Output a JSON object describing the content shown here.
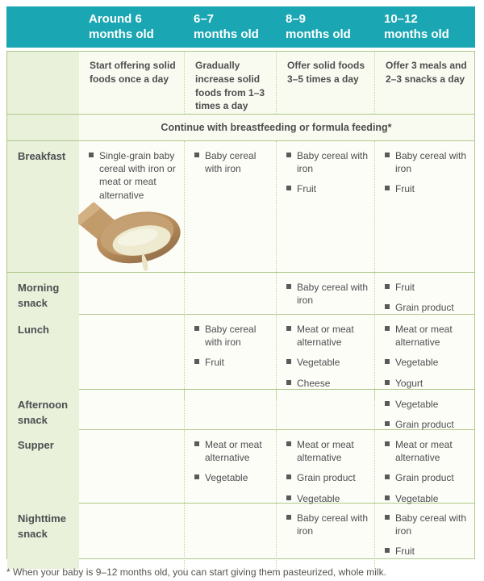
{
  "colors": {
    "header_teal": "#1BA6B3",
    "label_green": "#E9F1DB",
    "border_olive": "#AFC78B",
    "text_gray": "#4D4E50"
  },
  "table": {
    "header": {
      "columns": [
        "Around 6\nmonths old",
        "6–7\nmonths old",
        "8–9\nmonths old",
        "10–12\nmonths old"
      ]
    },
    "intro": {
      "cells": [
        "Start offering solid foods once a day",
        "Gradually increase solid foods from 1–3 times a day",
        "Offer solid foods 3–5 times a day",
        "Offer 3 meals and 2–3 snacks a day"
      ]
    },
    "banner": "Continue with breastfeeding or formula feeding*",
    "meal_rows": [
      {
        "label": "Breakfast",
        "cells": [
          {
            "items": [
              "Single-grain baby cereal with iron or meat or meat alternative"
            ],
            "image": "spoon-photo"
          },
          {
            "items": [
              "Baby cereal with iron"
            ]
          },
          {
            "items": [
              "Baby cereal with iron",
              "Fruit"
            ]
          },
          {
            "items": [
              "Baby cereal with iron",
              "Fruit"
            ]
          }
        ]
      },
      {
        "label": "Morning snack",
        "cells": [
          {
            "items": []
          },
          {
            "items": []
          },
          {
            "items": [
              "Baby cereal with iron"
            ]
          },
          {
            "items": [
              "Fruit",
              "Grain product"
            ]
          }
        ]
      },
      {
        "label": "Lunch",
        "cells": [
          {
            "items": []
          },
          {
            "items": [
              "Baby cereal with iron",
              "Fruit"
            ]
          },
          {
            "items": [
              "Meat or meat alternative",
              "Vegetable",
              "Cheese"
            ]
          },
          {
            "items": [
              "Meat or meat alternative",
              "Vegetable",
              "Yogurt"
            ]
          }
        ]
      },
      {
        "label": "Afternoon snack",
        "cells": [
          {
            "items": []
          },
          {
            "items": []
          },
          {
            "items": []
          },
          {
            "items": [
              "Vegetable",
              "Grain product"
            ]
          }
        ]
      },
      {
        "label": "Supper",
        "cells": [
          {
            "items": []
          },
          {
            "items": [
              "Meat or meat alternative",
              "Vegetable"
            ]
          },
          {
            "items": [
              "Meat or meat alternative",
              "Grain product",
              "Vegetable"
            ]
          },
          {
            "items": [
              "Meat or meat alternative",
              "Grain product",
              "Vegetable"
            ]
          }
        ]
      },
      {
        "label": "Nighttime snack",
        "cells": [
          {
            "items": []
          },
          {
            "items": []
          },
          {
            "items": [
              "Baby cereal with iron"
            ]
          },
          {
            "items": [
              "Baby cereal with iron",
              "Fruit"
            ]
          }
        ]
      }
    ]
  },
  "footnote": "* When your baby is 9–12 months old, you can start giving them pasteurized, whole milk."
}
